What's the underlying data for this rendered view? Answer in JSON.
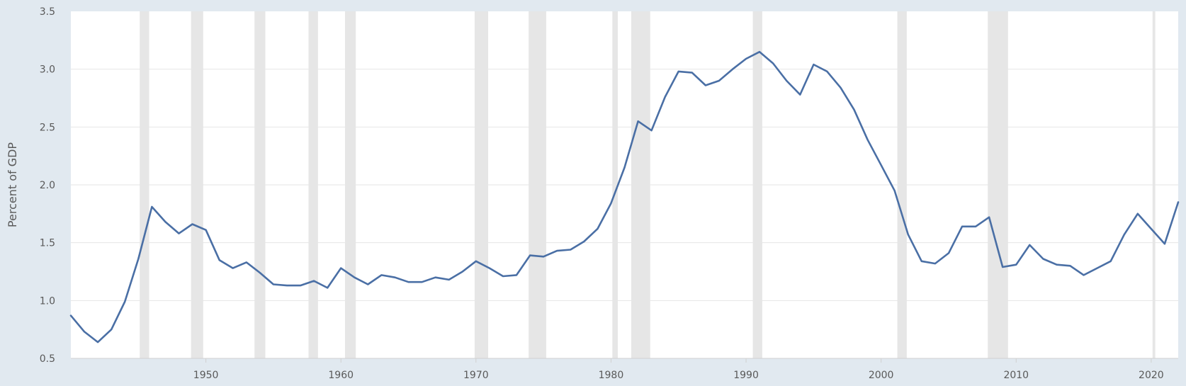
{
  "chart_data": {
    "type": "line",
    "title": "",
    "xlabel": "",
    "ylabel": "Percent of GDP",
    "xlim": [
      1940,
      2022
    ],
    "ylim": [
      0.5,
      3.5
    ],
    "yticks": [
      "0.5",
      "1.0",
      "1.5",
      "2.0",
      "2.5",
      "3.0",
      "3.5"
    ],
    "xticks": [
      "1950",
      "1960",
      "1970",
      "1980",
      "1990",
      "2000",
      "2010",
      "2020"
    ],
    "grid": true,
    "legend": "none",
    "colors": {
      "line": "#4a6fa5",
      "recession": "#e6e6e6",
      "plot_bg": "#ffffff",
      "page_bg": "#e1e9f0",
      "grid": "#e6e6e6"
    },
    "recessions": [
      [
        1945.1,
        1945.8
      ],
      [
        1948.9,
        1949.8
      ],
      [
        1953.6,
        1954.4
      ],
      [
        1957.6,
        1958.3
      ],
      [
        1960.3,
        1961.1
      ],
      [
        1969.9,
        1970.9
      ],
      [
        1973.9,
        1975.2
      ],
      [
        1980.1,
        1980.5
      ],
      [
        1981.5,
        1982.9
      ],
      [
        1990.5,
        1991.2
      ],
      [
        2001.2,
        2001.9
      ],
      [
        2007.9,
        2009.4
      ],
      [
        2020.1,
        2020.3
      ]
    ],
    "series": [
      {
        "x": [
          1940,
          1941,
          1942,
          1943,
          1944,
          1945,
          1946,
          1947,
          1948,
          1949,
          1950,
          1951,
          1952,
          1953,
          1954,
          1955,
          1956,
          1957,
          1958,
          1959,
          1960,
          1961,
          1962,
          1963,
          1964,
          1965,
          1966,
          1967,
          1968,
          1969,
          1970,
          1971,
          1972,
          1973,
          1974,
          1975,
          1976,
          1977,
          1978,
          1979,
          1980,
          1981,
          1982,
          1983,
          1984,
          1985,
          1986,
          1987,
          1988,
          1989,
          1990,
          1991,
          1992,
          1993,
          1994,
          1995,
          1996,
          1997,
          1998,
          1999,
          2000,
          2001,
          2002,
          2003,
          2004,
          2005,
          2006,
          2007,
          2008,
          2009,
          2010,
          2011,
          2012,
          2013,
          2014,
          2015,
          2016,
          2017,
          2018,
          2019,
          2020,
          2021,
          2022
        ],
        "values": [
          0.87,
          0.73,
          0.64,
          0.75,
          0.99,
          1.36,
          1.81,
          1.68,
          1.58,
          1.66,
          1.61,
          1.35,
          1.28,
          1.33,
          1.24,
          1.14,
          1.13,
          1.13,
          1.17,
          1.11,
          1.28,
          1.2,
          1.14,
          1.22,
          1.2,
          1.16,
          1.16,
          1.2,
          1.18,
          1.25,
          1.34,
          1.28,
          1.21,
          1.22,
          1.39,
          1.38,
          1.43,
          1.44,
          1.51,
          1.62,
          1.84,
          2.15,
          2.55,
          2.47,
          2.76,
          2.98,
          2.97,
          2.86,
          2.9,
          3.0,
          3.09,
          3.15,
          3.05,
          2.9,
          2.78,
          3.04,
          2.98,
          2.84,
          2.65,
          2.39,
          2.17,
          1.95,
          1.57,
          1.34,
          1.32,
          1.41,
          1.64,
          1.64,
          1.72,
          1.29,
          1.31,
          1.48,
          1.36,
          1.31,
          1.3,
          1.22,
          1.28,
          1.34,
          1.57,
          1.75,
          1.62,
          1.49,
          1.85
        ]
      }
    ]
  }
}
